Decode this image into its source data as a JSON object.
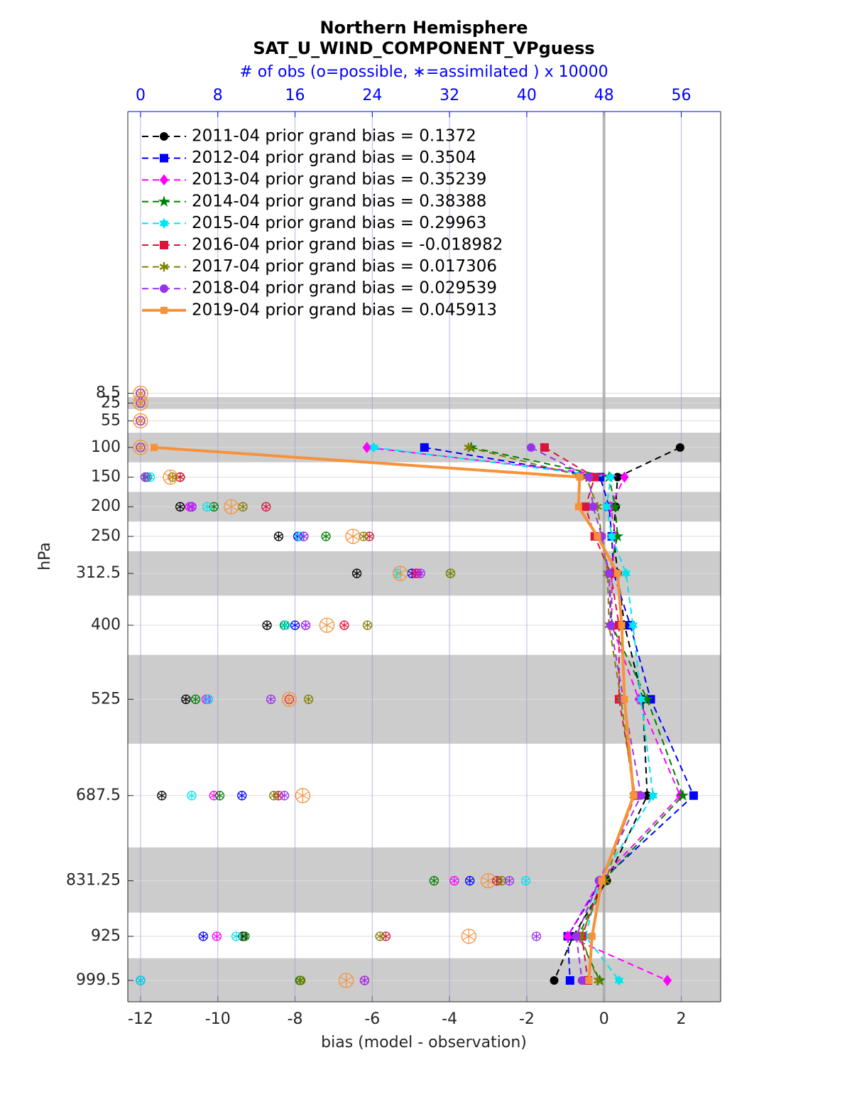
{
  "chart_data": {
    "type": "profile",
    "title": "Northern Hemisphere",
    "subtitle": "SAT_U_WIND_COMPONENT_VPguess",
    "x2label": "# of obs (o=possible, ∗=assimilated ) x 10000",
    "xlabel": "bias (model - observation)",
    "ylabel": "hPa",
    "xlim": [
      -12.33,
      3.02
    ],
    "xticks": [
      -12,
      -10,
      -8,
      -6,
      -4,
      -2,
      0,
      2
    ],
    "x2lim": [
      -1.32,
      60.08
    ],
    "x2ticks": [
      0,
      8,
      16,
      24,
      32,
      40,
      48,
      56
    ],
    "ylim": [
      1035.5,
      -467
    ],
    "yticks": [
      8.5,
      25,
      55,
      100,
      150,
      200,
      250,
      312.5,
      400,
      525,
      687.5,
      831.25,
      925,
      999.5
    ],
    "levels": [
      8.5,
      25,
      55,
      100,
      150,
      200,
      250,
      312.5,
      400,
      525,
      687.5,
      831.25,
      925,
      999.5
    ],
    "shaded_layers": [
      [
        15,
        35
      ],
      [
        75,
        125
      ],
      [
        175,
        225
      ],
      [
        275,
        350
      ],
      [
        450,
        600
      ],
      [
        775,
        885
      ],
      [
        962,
        1035.5
      ]
    ],
    "grid": true,
    "legend": "upper left",
    "series": [
      {
        "name": "2011-04 prior grand bias = 0.1372",
        "color": "#000000",
        "marker": "circle",
        "dashed": true,
        "values": [
          null,
          null,
          null,
          1.97,
          0.35,
          0.3,
          0.25,
          0.35,
          0.53,
          1.0,
          1.12,
          0.07,
          -0.8,
          -1.29
        ],
        "obs_possible": [
          0,
          0,
          0,
          0,
          4.1,
          4.1,
          14.3,
          22.4,
          13.1,
          4.7,
          2.2,
          36.9,
          10.6,
          0
        ],
        "obs_assimilated": [
          0,
          0,
          0,
          0,
          4.1,
          4.1,
          14.3,
          22.4,
          13.1,
          4.7,
          2.2,
          36.9,
          10.6,
          0
        ]
      },
      {
        "name": "2012-04 prior grand bias = 0.3504",
        "color": "#0000ff",
        "marker": "square",
        "dashed": true,
        "values": [
          null,
          null,
          null,
          -4.65,
          -0.1,
          0.13,
          0.2,
          0.25,
          0.68,
          1.21,
          2.32,
          -0.07,
          -0.94,
          -0.88
        ],
        "obs_possible": [
          0,
          0,
          0,
          0,
          0.5,
          5.3,
          16.3,
          28.1,
          16.0,
          7.0,
          10.5,
          34.1,
          6.5,
          0
        ],
        "obs_assimilated": [
          0,
          0,
          0,
          0,
          0.5,
          5.3,
          16.3,
          28.1,
          16.0,
          7.0,
          10.5,
          34.1,
          6.5,
          0
        ]
      },
      {
        "name": "2013-04 prior grand bias = 0.35239",
        "color": "#ff00ff",
        "marker": "diamond",
        "dashed": true,
        "values": [
          null,
          null,
          null,
          -6.14,
          0.53,
          0.17,
          0.3,
          0.2,
          0.2,
          0.9,
          1.97,
          -0.11,
          -0.94,
          1.64
        ],
        "obs_possible": [
          0,
          0,
          0,
          0,
          0.5,
          5.1,
          16.9,
          28.7,
          17.1,
          6.8,
          7.6,
          32.5,
          7.9,
          23.2
        ],
        "obs_assimilated": [
          0,
          0,
          0,
          0,
          0.5,
          5.1,
          16.9,
          28.7,
          17.1,
          6.8,
          7.6,
          32.5,
          7.9,
          23.2
        ]
      },
      {
        "name": "2014-04 prior grand bias = 0.38388",
        "color": "#008000",
        "marker": "pentagram",
        "dashed": true,
        "values": [
          null,
          null,
          null,
          -3.44,
          0.13,
          0.29,
          0.35,
          0.13,
          0.2,
          1.12,
          2.04,
          -0.02,
          -0.66,
          -0.11
        ],
        "obs_possible": [
          0,
          0,
          0,
          0,
          0.7,
          7.6,
          19.2,
          32.1,
          14.9,
          5.7,
          8.2,
          30.4,
          10.8,
          16.5
        ],
        "obs_assimilated": [
          0,
          0,
          0,
          0,
          0.7,
          7.6,
          19.2,
          32.1,
          14.9,
          5.7,
          8.2,
          30.4,
          10.8,
          16.5
        ]
      },
      {
        "name": "2015-04 prior grand bias = 0.29963",
        "color": "#00e5ee",
        "marker": "hexagram",
        "dashed": true,
        "values": [
          null,
          null,
          null,
          -5.96,
          0.17,
          0.07,
          0.2,
          0.57,
          0.75,
          0.96,
          1.27,
          -0.11,
          -0.48,
          0.39
        ],
        "obs_possible": [
          0,
          0,
          0,
          0,
          1.0,
          6.9,
          16.5,
          26.6,
          15.0,
          7.0,
          5.3,
          39.9,
          9.9,
          0
        ],
        "obs_assimilated": [
          0,
          0,
          0,
          0,
          1.0,
          6.9,
          16.5,
          26.6,
          15.0,
          7.0,
          5.3,
          39.9,
          9.9,
          0
        ]
      },
      {
        "name": "2016-04 prior grand bias = -0.018982",
        "color": "#dc143c",
        "marker": "square",
        "dashed": true,
        "values": [
          null,
          null,
          null,
          -1.54,
          -0.24,
          -0.48,
          -0.24,
          0.17,
          0.39,
          0.39,
          0.81,
          -0.06,
          -0.57,
          -0.42
        ],
        "obs_possible": [
          0,
          0,
          0,
          0,
          4.1,
          13.0,
          23.7,
          28.5,
          21.1,
          15.4,
          14.3,
          36.9,
          25.4,
          23.2
        ],
        "obs_assimilated": [
          0,
          0,
          0,
          0,
          4.1,
          13.0,
          23.7,
          28.5,
          21.1,
          15.4,
          14.3,
          36.9,
          25.4,
          23.2
        ]
      },
      {
        "name": "2017-04 prior grand bias = 0.017306",
        "color": "#808000",
        "marker": "asterisk",
        "dashed": true,
        "values": [
          null,
          null,
          null,
          -3.51,
          -0.46,
          -0.17,
          -0.06,
          0.09,
          0.13,
          0.44,
          0.77,
          0.04,
          -0.61,
          -0.15
        ],
        "obs_possible": [
          0,
          0,
          0,
          0,
          3.3,
          10.6,
          23.1,
          32.1,
          23.5,
          17.4,
          13.8,
          37.4,
          24.8,
          16.6
        ],
        "obs_assimilated": [
          0,
          0,
          0,
          0,
          3.3,
          10.6,
          23.1,
          32.1,
          23.5,
          17.4,
          13.8,
          37.4,
          24.8,
          16.6
        ]
      },
      {
        "name": "2018-04 prior grand bias = 0.029539",
        "color": "#9932ee",
        "marker": "circle",
        "dashed": true,
        "values": [
          null,
          null,
          null,
          -1.89,
          -0.39,
          -0.28,
          -0.06,
          0.13,
          0.17,
          0.5,
          0.96,
          -0.13,
          -0.72,
          -0.57
        ],
        "obs_possible": [
          0,
          0,
          0,
          0,
          0.5,
          5.3,
          16.9,
          29.0,
          17.1,
          13.5,
          14.9,
          38.2,
          41.0,
          23.2
        ],
        "obs_assimilated": [
          0,
          0,
          0,
          0,
          0.5,
          5.3,
          16.9,
          29.0,
          17.1,
          13.5,
          14.9,
          38.2,
          41.0,
          23.2
        ]
      },
      {
        "name": "2019-04 prior grand bias = 0.045913",
        "color": "#f7923a",
        "marker": "square",
        "dashed": false,
        "values": [
          null,
          null,
          null,
          -11.65,
          -0.63,
          -0.66,
          -0.17,
          0.35,
          0.46,
          0.53,
          0.77,
          -0.06,
          -0.31,
          -0.39
        ],
        "obs_possible": [
          0,
          0,
          0,
          0,
          3.1,
          9.4,
          22.0,
          26.9,
          19.3,
          15.4,
          16.8,
          36.0,
          34.0,
          21.3
        ],
        "obs_assimilated": [
          0,
          0,
          0,
          0,
          3.1,
          9.4,
          22.0,
          26.9,
          19.3,
          15.4,
          16.8,
          36.0,
          34.0,
          21.3
        ]
      }
    ]
  }
}
